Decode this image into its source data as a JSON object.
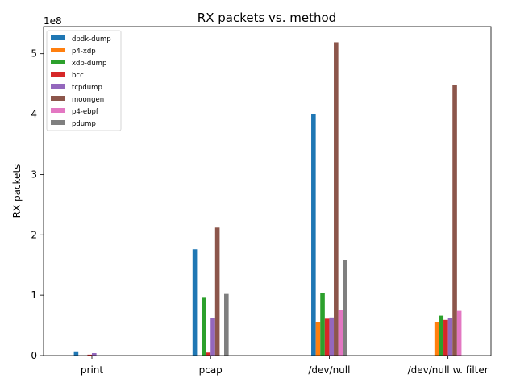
{
  "chart_data": {
    "type": "bar",
    "title": "RX packets vs. method",
    "xlabel": "",
    "ylabel": "RX packets",
    "y_scale_label": "1e8",
    "y_multiplier": 100000000,
    "ylim": [
      0,
      545000000
    ],
    "y_ticks": [
      0,
      100000000,
      200000000,
      300000000,
      400000000,
      500000000
    ],
    "y_tick_labels": [
      "0",
      "1",
      "2",
      "3",
      "4",
      "5"
    ],
    "grid": false,
    "legend_position": "top-left",
    "categories": [
      "print",
      "pcap",
      "/dev/null",
      "/dev/null w. filter"
    ],
    "series": [
      {
        "name": "dpdk-dump",
        "color": "#1f77b4",
        "values": [
          7000000,
          176000000,
          400000000,
          0
        ]
      },
      {
        "name": "p4-xdp",
        "color": "#ff7f0e",
        "values": [
          0,
          0,
          56000000,
          56000000
        ]
      },
      {
        "name": "xdp-dump",
        "color": "#2ca02c",
        "values": [
          0,
          97000000,
          103000000,
          66000000
        ]
      },
      {
        "name": "bcc",
        "color": "#d62728",
        "values": [
          1500000,
          5000000,
          61000000,
          59000000
        ]
      },
      {
        "name": "tcpdump",
        "color": "#9467bd",
        "values": [
          4000000,
          62000000,
          63000000,
          62000000
        ]
      },
      {
        "name": "moongen",
        "color": "#8c564b",
        "values": [
          0,
          212000000,
          519000000,
          448000000
        ]
      },
      {
        "name": "p4-ebpf",
        "color": "#e377c2",
        "values": [
          0,
          0,
          75000000,
          74000000
        ]
      },
      {
        "name": "pdump",
        "color": "#7f7f7f",
        "values": [
          0,
          102000000,
          158000000,
          0
        ]
      }
    ]
  }
}
